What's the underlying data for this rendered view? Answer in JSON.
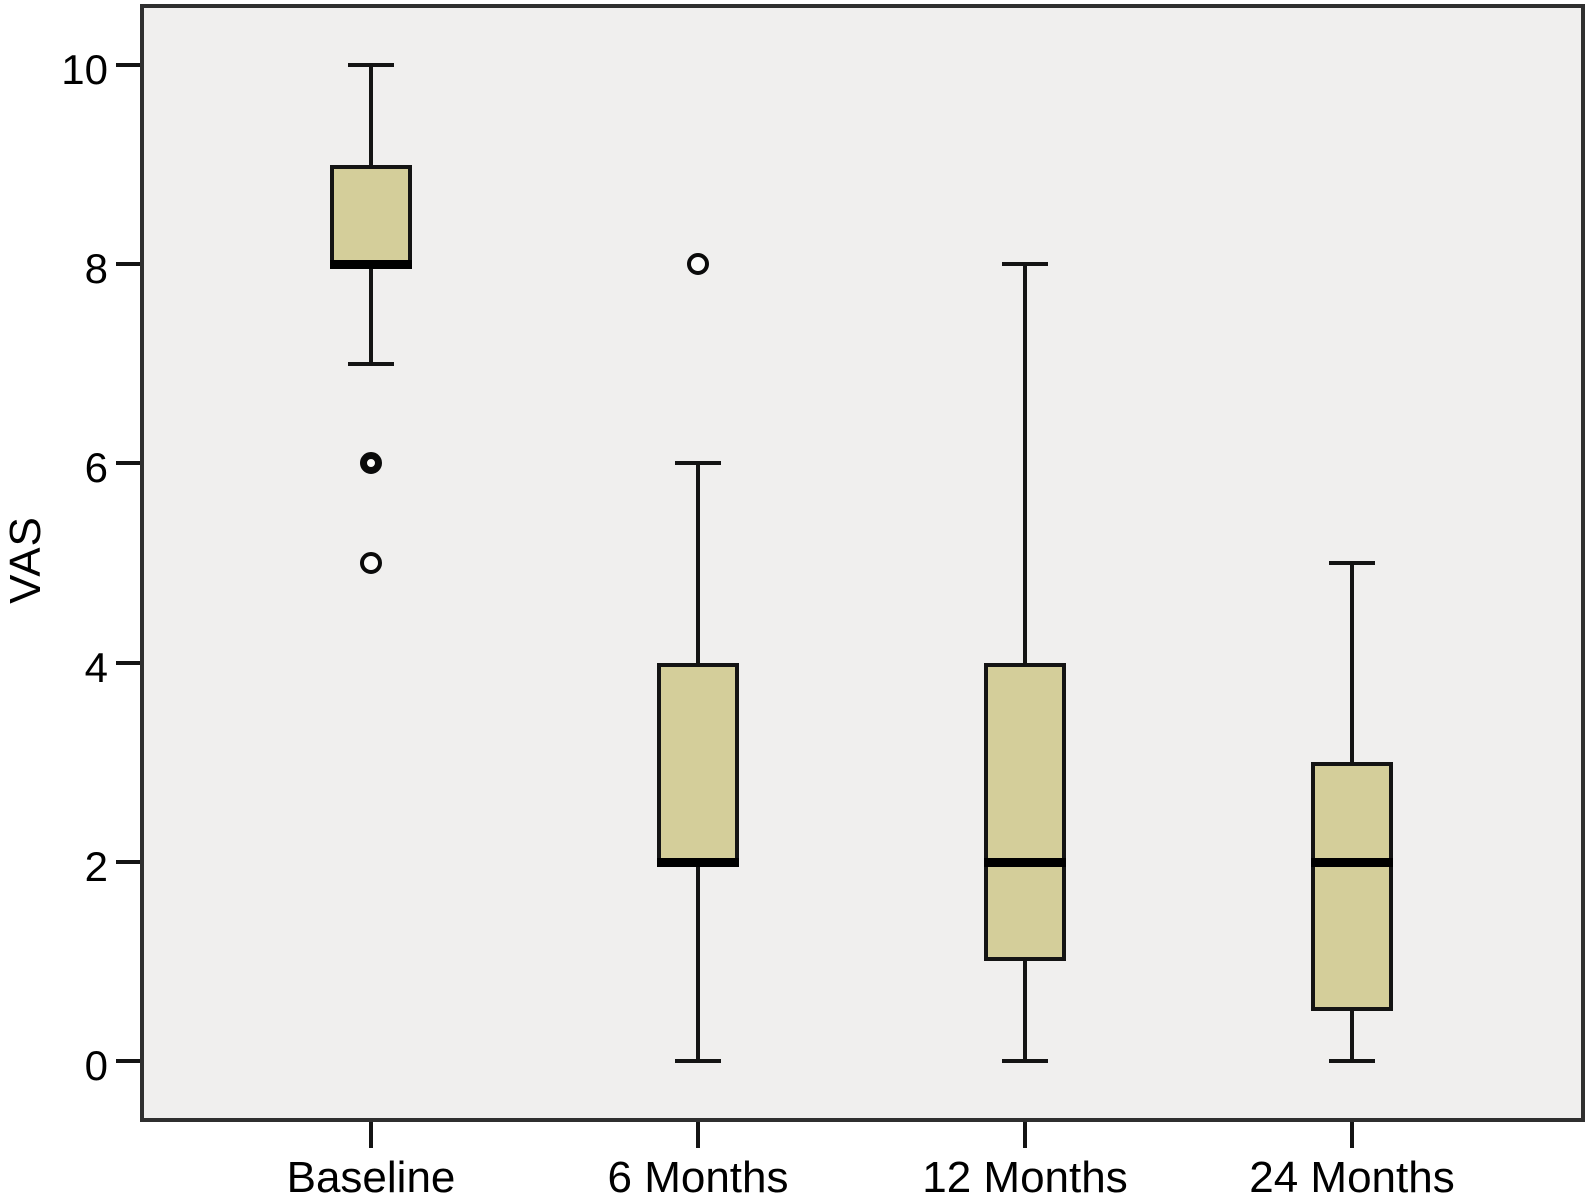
{
  "figure": {
    "background": "#ffffff",
    "plot_background": "#f0efee",
    "frame_color": "#2f2f2f",
    "box_fill": "#d4ce9a",
    "line_color": "#141414",
    "text_color": "#000000"
  },
  "chart_data": {
    "type": "boxplot",
    "title": "",
    "xlabel": "",
    "ylabel": "VAS",
    "categories": [
      "Baseline",
      "6 Months",
      "12 Months",
      "24 Months"
    ],
    "yticks": [
      0,
      2,
      4,
      6,
      8,
      10
    ],
    "ylim": [
      -0.65,
      10.6
    ],
    "grid": false,
    "legend": "none",
    "series": [
      {
        "category": "Baseline",
        "whisker_low": 7,
        "q1": 8,
        "median": 8,
        "q3": 9,
        "whisker_high": 10,
        "outliers": [
          {
            "value": 6,
            "double": true
          },
          {
            "value": 5,
            "double": false
          }
        ]
      },
      {
        "category": "6 Months",
        "whisker_low": 0,
        "q1": 2,
        "median": 2,
        "q3": 4,
        "whisker_high": 6,
        "outliers": [
          {
            "value": 8,
            "double": false
          }
        ]
      },
      {
        "category": "12 Months",
        "whisker_low": 0,
        "q1": 1,
        "median": 2,
        "q3": 4,
        "whisker_high": 8,
        "outliers": []
      },
      {
        "category": "24 Months",
        "whisker_low": 0,
        "q1": 0.5,
        "median": 2,
        "q3": 3,
        "whisker_high": 5,
        "outliers": []
      }
    ]
  }
}
